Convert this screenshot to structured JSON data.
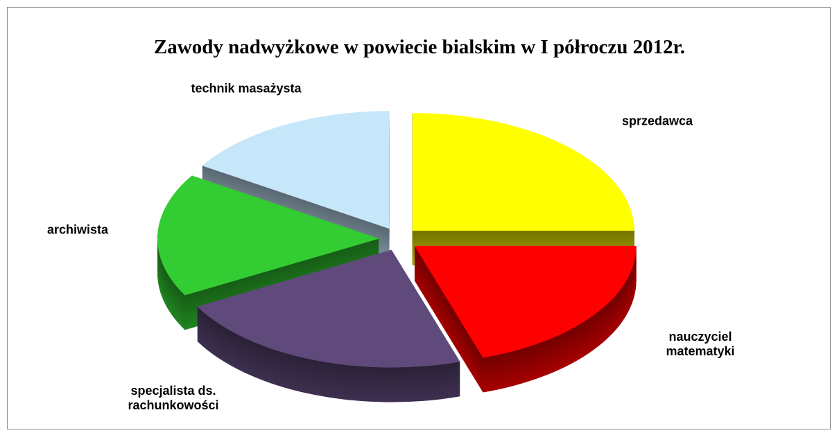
{
  "chart_data": {
    "type": "pie",
    "title": "Zawody nadwyżkowe w powiecie bialskim  w I półroczu 2012r.",
    "categories": [
      "sprzedawca",
      "nauczyciel matematyki",
      "specjalista ds. rachunkowości",
      "archiwista",
      "technik masażysta"
    ],
    "values": [
      25,
      20,
      22,
      17,
      16
    ],
    "colors": [
      "#ffff00",
      "#ff0000",
      "#5f4a7b",
      "#33cc33",
      "#c6e6fa"
    ]
  }
}
